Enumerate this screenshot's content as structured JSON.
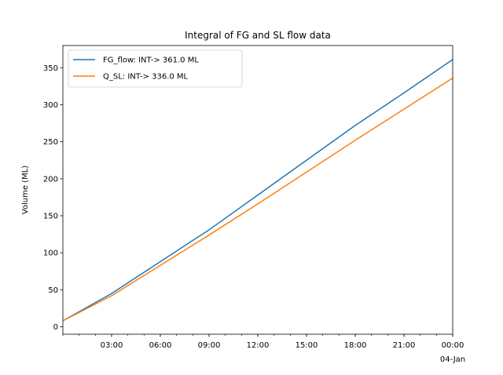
{
  "chart_data": {
    "type": "line",
    "title": "Integral of FG and SL flow data",
    "xlabel": "",
    "ylabel": "Volume (ML)",
    "xlim": [
      "2023-01-03T00:00",
      "2023-01-04T00:00"
    ],
    "ylim": [
      -10,
      380
    ],
    "x_ticks": [
      {
        "time": "2023-01-03T03:00",
        "label": "03:00"
      },
      {
        "time": "2023-01-03T06:00",
        "label": "06:00"
      },
      {
        "time": "2023-01-03T09:00",
        "label": "09:00"
      },
      {
        "time": "2023-01-03T12:00",
        "label": "12:00"
      },
      {
        "time": "2023-01-03T15:00",
        "label": "15:00"
      },
      {
        "time": "2023-01-03T18:00",
        "label": "18:00"
      },
      {
        "time": "2023-01-03T21:00",
        "label": "21:00"
      },
      {
        "time": "2023-01-04T00:00",
        "label": "00:00",
        "sublabel": "04-Jan"
      }
    ],
    "y_ticks": [
      0,
      50,
      100,
      150,
      200,
      250,
      300,
      350
    ],
    "grid": false,
    "legend_position": "top-left",
    "series": [
      {
        "name": "FG_flow: INT-> 361.0 ML",
        "color": "#1f77b4",
        "x": [
          "2023-01-03T00:00",
          "2023-01-03T03:00",
          "2023-01-03T06:00",
          "2023-01-03T09:00",
          "2023-01-03T12:00",
          "2023-01-03T15:00",
          "2023-01-03T18:00",
          "2023-01-03T21:00",
          "2023-01-04T00:00"
        ],
        "y": [
          8,
          45,
          88,
          131,
          178,
          225,
          272,
          316,
          361
        ]
      },
      {
        "name": "Q_SL: INT-> 336.0 ML",
        "color": "#ff7f0e",
        "x": [
          "2023-01-03T00:00",
          "2023-01-03T03:00",
          "2023-01-03T06:00",
          "2023-01-03T09:00",
          "2023-01-03T12:00",
          "2023-01-03T15:00",
          "2023-01-03T18:00",
          "2023-01-03T21:00",
          "2023-01-04T00:00"
        ],
        "y": [
          8,
          42,
          83,
          124,
          166,
          209,
          252,
          294,
          336
        ]
      }
    ]
  }
}
